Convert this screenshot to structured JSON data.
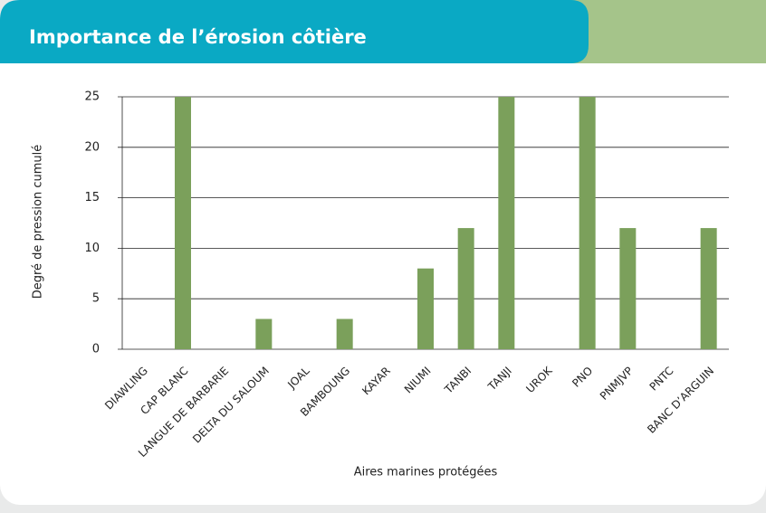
{
  "chart_data": {
    "type": "bar",
    "title": "Importance de l’érosion côtière",
    "categories": [
      "DIAWLING",
      "CAP BLANC",
      "LANGUE DE BARBARIE",
      "DELTA DU SALOUM",
      "JOAL",
      "BAMBOUNG",
      "KAYAR",
      "NIUMI",
      "TANBI",
      "TANJI",
      "UROK",
      "PNO",
      "PNMJVP",
      "PNTC",
      "BANC D’ARGUIN"
    ],
    "values": [
      0,
      25,
      0,
      3,
      0,
      3,
      0,
      8,
      12,
      25,
      0,
      25,
      12,
      0,
      12
    ],
    "color": "#7ba05b",
    "ylim": [
      0,
      25
    ],
    "yticks": [
      0,
      5,
      10,
      15,
      20,
      25
    ],
    "grid": true,
    "x_label": "Aires marines protégées",
    "y_label": "Degré de pression cumulé"
  }
}
